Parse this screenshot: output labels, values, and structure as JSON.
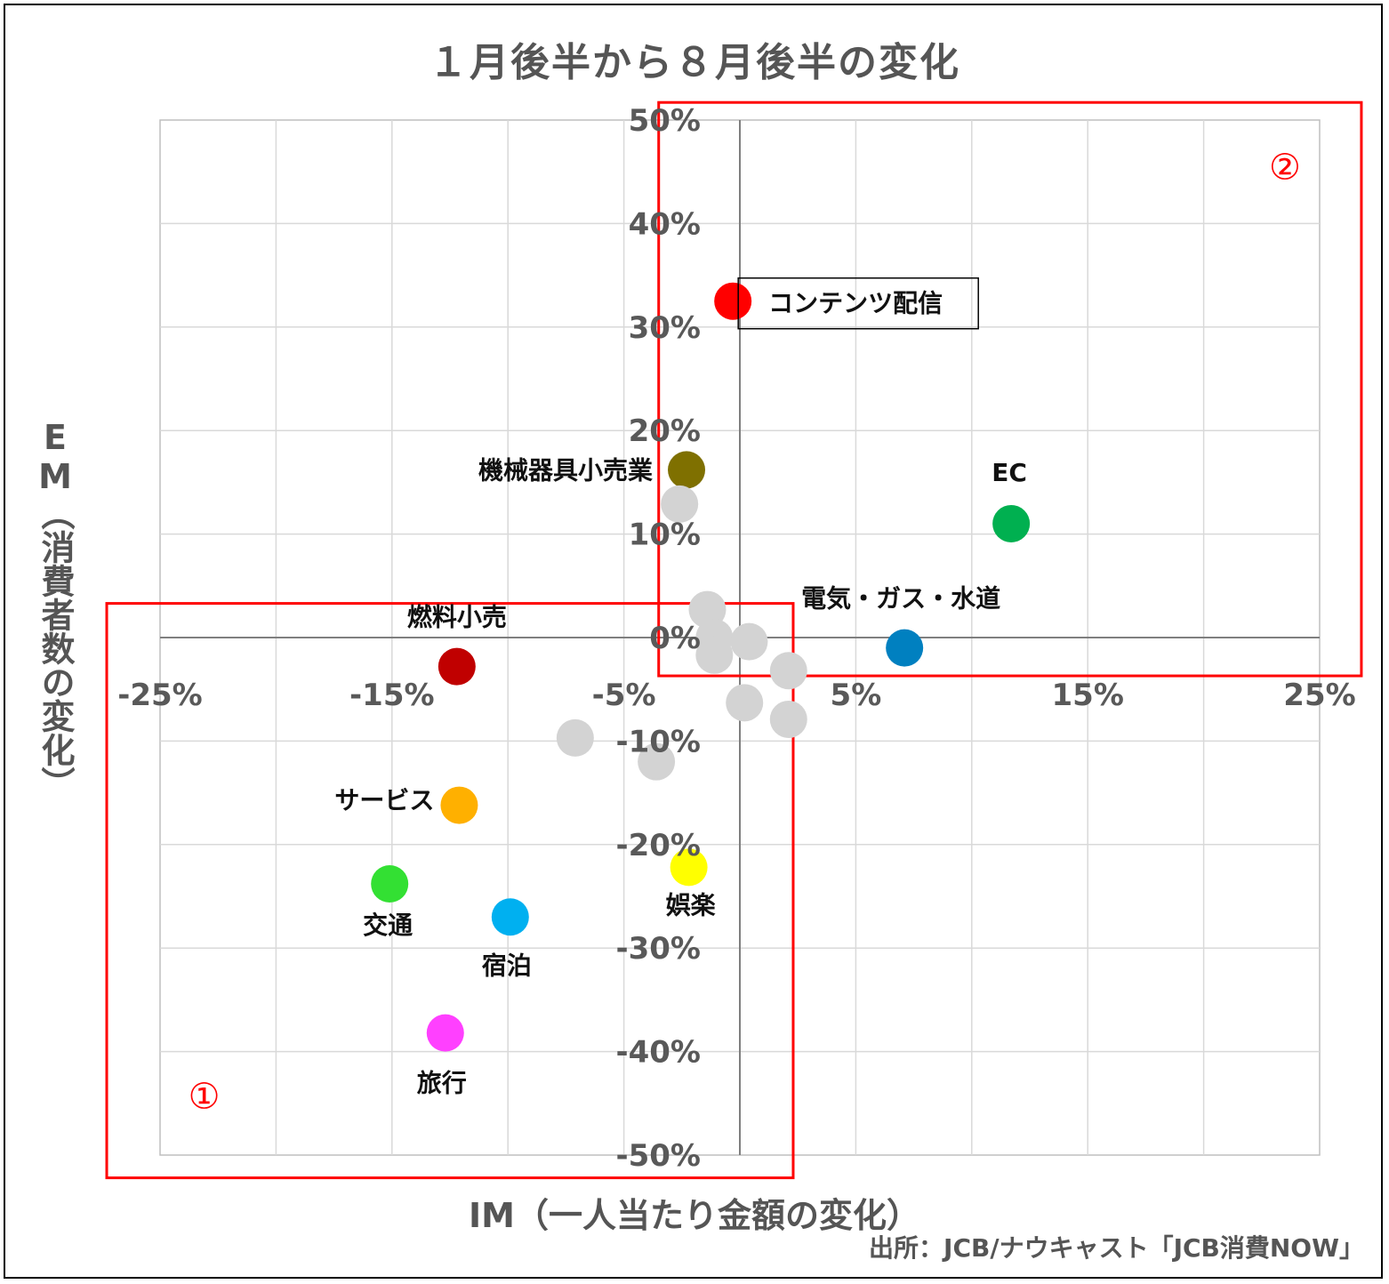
{
  "chart_data": {
    "type": "scatter",
    "title": "１月後半から８月後半の変化",
    "xlabel": "IM（一人当たり金額の変化）",
    "ylabel": "EM（消費者数の変化）",
    "source": "出所：JCB/ナウキャスト「JCB消費NOW」",
    "xlim": [
      -25,
      25
    ],
    "ylim": [
      -50,
      50
    ],
    "x_ticks": [
      "-25%",
      "-15%",
      "-5%",
      "5%",
      "15%",
      "25%"
    ],
    "x_tick_values": [
      -25,
      -15,
      -5,
      5,
      15,
      25
    ],
    "y_ticks": [
      "50%",
      "40%",
      "30%",
      "20%",
      "10%",
      "0%",
      "-10%",
      "-20%",
      "-30%",
      "-40%",
      "-50%"
    ],
    "y_tick_values": [
      50,
      40,
      30,
      20,
      10,
      0,
      -10,
      -20,
      -30,
      -40,
      -50
    ],
    "grid": true,
    "points": [
      {
        "label": "コンテンツ配信",
        "x": -0.3,
        "y": 32.5,
        "color": "#ff0000",
        "boxed": true
      },
      {
        "label": "機械器具小売業",
        "x": -2.3,
        "y": 16.2,
        "color": "#7f7000"
      },
      {
        "label": "EC",
        "x": 11.7,
        "y": 11.0,
        "color": "#00b050"
      },
      {
        "label": "電気・ガス・水道",
        "x": 7.1,
        "y": -1.0,
        "color": "#0080c0"
      },
      {
        "label": "燃料小売",
        "x": -12.2,
        "y": -2.8,
        "color": "#c00000"
      },
      {
        "label": "サービス",
        "x": -12.1,
        "y": -16.2,
        "color": "#ffb000"
      },
      {
        "label": "娯楽",
        "x": -2.2,
        "y": -22.2,
        "color": "#ffff00"
      },
      {
        "label": "交通",
        "x": -15.1,
        "y": -23.8,
        "color": "#33e033"
      },
      {
        "label": "宿泊",
        "x": -9.9,
        "y": -27.0,
        "color": "#00b0f0"
      },
      {
        "label": "旅行",
        "x": -12.7,
        "y": -38.2,
        "color": "#ff40ff"
      },
      {
        "label": "",
        "x": -2.6,
        "y": 12.9,
        "color": "#d3d3d3"
      },
      {
        "label": "",
        "x": -1.4,
        "y": 2.7,
        "color": "#d3d3d3"
      },
      {
        "label": "",
        "x": -1.1,
        "y": 0.0,
        "color": "#d3d3d3"
      },
      {
        "label": "",
        "x": -1.1,
        "y": -1.7,
        "color": "#d3d3d3"
      },
      {
        "label": "",
        "x": 0.4,
        "y": -0.4,
        "color": "#d3d3d3"
      },
      {
        "label": "",
        "x": 2.1,
        "y": -3.2,
        "color": "#d3d3d3"
      },
      {
        "label": "",
        "x": 0.2,
        "y": -6.3,
        "color": "#d3d3d3"
      },
      {
        "label": "",
        "x": 2.1,
        "y": -7.9,
        "color": "#d3d3d3"
      },
      {
        "label": "",
        "x": -7.1,
        "y": -9.7,
        "color": "#d3d3d3"
      },
      {
        "label": "",
        "x": -3.6,
        "y": -12.0,
        "color": "#d3d3d3"
      }
    ],
    "callouts": [
      {
        "label": "①",
        "color": "#ff0000"
      },
      {
        "label": "②",
        "color": "#ff0000"
      }
    ]
  }
}
